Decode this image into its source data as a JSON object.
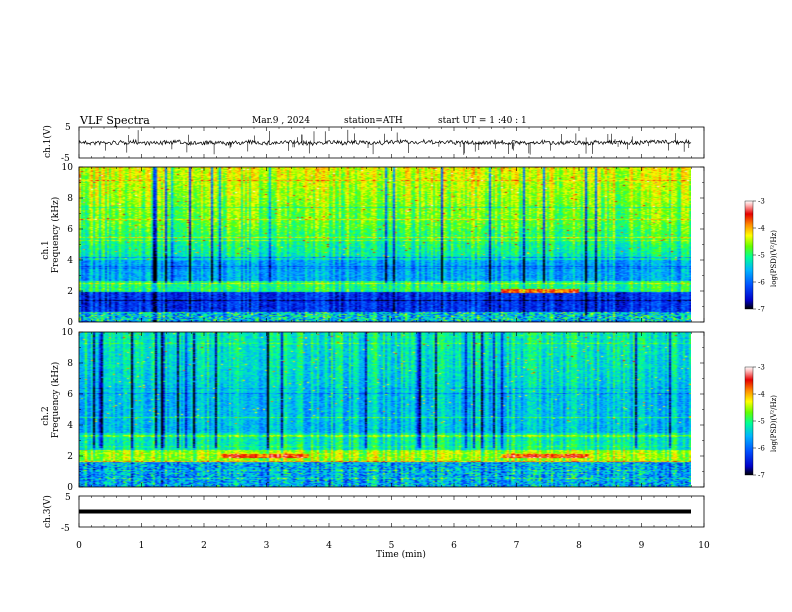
{
  "header": {
    "title": "VLF  Spectra",
    "date": "Mar.9  , 2024",
    "station": "station=ATH",
    "start": "start  UT  =   1  :40 : 1"
  },
  "chart_data": [
    {
      "type": "line",
      "panel": "ch1-waveform",
      "ylabel": "ch.1(V)",
      "yticks": [
        "5",
        "-5"
      ],
      "ylim": [
        -5,
        5
      ],
      "baseline": 0
    },
    {
      "type": "heatmap",
      "panel": "ch1-spectrogram",
      "ylabel_line1": "ch.1",
      "ylabel_line2": "Frequency  (kHz)",
      "yticks": [
        "0",
        "2",
        "4",
        "6",
        "8",
        "10"
      ],
      "ylim": [
        0,
        10
      ],
      "xlim": [
        0,
        10
      ],
      "data_end_min": 9.8,
      "colorbar": {
        "label": "log(PSD)(V²/Hz)",
        "ticks": [
          "-3",
          "-4",
          "-5",
          "-6",
          "-7"
        ],
        "range": [
          -7,
          -3
        ]
      }
    },
    {
      "type": "heatmap",
      "panel": "ch2-spectrogram",
      "ylabel_line1": "ch.2",
      "ylabel_line2": "Frequency  (kHz)",
      "yticks": [
        "0",
        "2",
        "4",
        "6",
        "8",
        "10"
      ],
      "ylim": [
        0,
        10
      ],
      "xlim": [
        0,
        10
      ],
      "data_end_min": 9.8,
      "colorbar": {
        "label": "log(PSD)(V²/Hz)",
        "ticks": [
          "-3",
          "-4",
          "-5",
          "-6",
          "-7"
        ],
        "range": [
          -7,
          -3
        ]
      }
    },
    {
      "type": "line",
      "panel": "ch3-waveform",
      "ylabel": "ch.3(V)",
      "yticks": [
        "5",
        "-5"
      ],
      "ylim": [
        -5,
        5
      ],
      "baseline": 0
    }
  ],
  "xaxis": {
    "label": "Time  (min)",
    "ticks": [
      "0",
      "1",
      "2",
      "3",
      "4",
      "5",
      "6",
      "7",
      "8",
      "9",
      "10"
    ],
    "xlim": [
      0,
      10
    ]
  },
  "colors": {
    "colormap": [
      "#000000",
      "#0000c8",
      "#0050ff",
      "#00b4ff",
      "#00ff96",
      "#64ff00",
      "#ffff00",
      "#ff8c00",
      "#e60000",
      "#ffb4b4",
      "#ffffff"
    ]
  }
}
